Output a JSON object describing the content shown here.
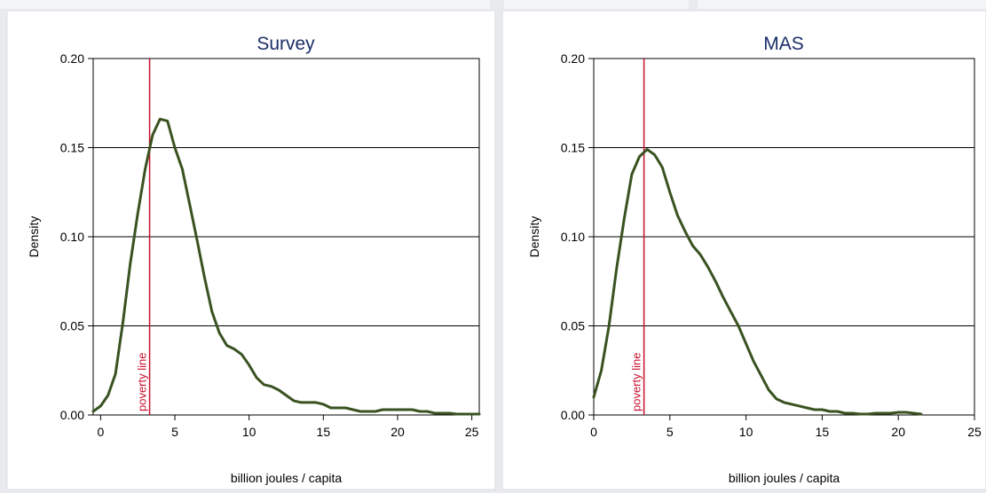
{
  "colors": {
    "line": "#3a5220",
    "poverty_line": "#c8102e",
    "title": "#1a2e66",
    "panel_background": "#ffffff",
    "page_background": "#e8eaed"
  },
  "chart_data": [
    {
      "type": "line",
      "title": "Survey",
      "xlabel": "billion joules / capita",
      "ylabel": "Density",
      "xlim": [
        -0.5,
        25.5
      ],
      "ylim": [
        0,
        0.2
      ],
      "x_ticks": [
        "0",
        "5",
        "10",
        "15",
        "20",
        "25"
      ],
      "x_tick_values": [
        0,
        5,
        10,
        15,
        20,
        25
      ],
      "y_ticks": [
        "0.00",
        "0.05",
        "0.10",
        "0.15",
        "0.20"
      ],
      "y_tick_values": [
        0,
        0.05,
        0.1,
        0.15,
        0.2
      ],
      "grid": "horizontal",
      "reference_line": {
        "x": 3.3,
        "label": "poverty line"
      },
      "series": [
        {
          "x": [
            -0.5,
            0,
            0.5,
            1,
            1.5,
            2,
            2.5,
            3,
            3.5,
            4,
            4.5,
            5,
            5.5,
            6,
            6.5,
            7,
            7.5,
            8,
            8.5,
            9,
            9.5,
            10,
            10.5,
            11,
            11.5,
            12,
            12.5,
            13,
            13.5,
            14,
            14.5,
            15,
            15.5,
            16,
            16.5,
            17,
            17.5,
            18,
            18.5,
            19,
            19.5,
            20,
            20.5,
            21,
            21.5,
            22,
            22.5,
            23,
            23.5,
            24,
            24.5,
            25,
            25.5
          ],
          "y": [
            0.002,
            0.005,
            0.011,
            0.023,
            0.052,
            0.085,
            0.113,
            0.138,
            0.157,
            0.166,
            0.165,
            0.15,
            0.138,
            0.118,
            0.098,
            0.077,
            0.058,
            0.046,
            0.039,
            0.037,
            0.034,
            0.028,
            0.021,
            0.017,
            0.016,
            0.014,
            0.011,
            0.008,
            0.007,
            0.007,
            0.007,
            0.006,
            0.004,
            0.004,
            0.004,
            0.003,
            0.002,
            0.002,
            0.002,
            0.003,
            0.003,
            0.003,
            0.003,
            0.003,
            0.002,
            0.002,
            0.001,
            0.001,
            0.001,
            0.0005,
            0.0005,
            0.0005,
            0.0005
          ]
        }
      ]
    },
    {
      "type": "line",
      "title": "MAS",
      "xlabel": "billion joules / capita",
      "ylabel": "Density",
      "xlim": [
        0,
        25
      ],
      "ylim": [
        0,
        0.2
      ],
      "x_ticks": [
        "0",
        "5",
        "10",
        "15",
        "20",
        "25"
      ],
      "x_tick_values": [
        0,
        5,
        10,
        15,
        20,
        25
      ],
      "y_ticks": [
        "0.00",
        "0.05",
        "0.10",
        "0.15",
        "0.20"
      ],
      "y_tick_values": [
        0,
        0.05,
        0.1,
        0.15,
        0.2
      ],
      "grid": "horizontal",
      "reference_line": {
        "x": 3.3,
        "label": "poverty line"
      },
      "series": [
        {
          "x": [
            0,
            0.5,
            1,
            1.5,
            2,
            2.5,
            3,
            3.5,
            4,
            4.5,
            5,
            5.5,
            6,
            6.5,
            7,
            7.5,
            8,
            8.5,
            9,
            9.5,
            10,
            10.5,
            11,
            11.5,
            12,
            12.5,
            13,
            13.5,
            14,
            14.5,
            15,
            15.5,
            16,
            16.5,
            17,
            17.5,
            18,
            18.5,
            19,
            19.5,
            20,
            20.5,
            21,
            21.5
          ],
          "y": [
            0.01,
            0.025,
            0.05,
            0.082,
            0.11,
            0.135,
            0.145,
            0.149,
            0.146,
            0.139,
            0.125,
            0.112,
            0.103,
            0.095,
            0.09,
            0.083,
            0.075,
            0.066,
            0.058,
            0.05,
            0.04,
            0.03,
            0.022,
            0.014,
            0.009,
            0.007,
            0.006,
            0.005,
            0.004,
            0.003,
            0.003,
            0.002,
            0.002,
            0.001,
            0.001,
            0.0005,
            0.0005,
            0.001,
            0.001,
            0.001,
            0.0015,
            0.0015,
            0.001,
            0.0005
          ]
        }
      ]
    }
  ]
}
